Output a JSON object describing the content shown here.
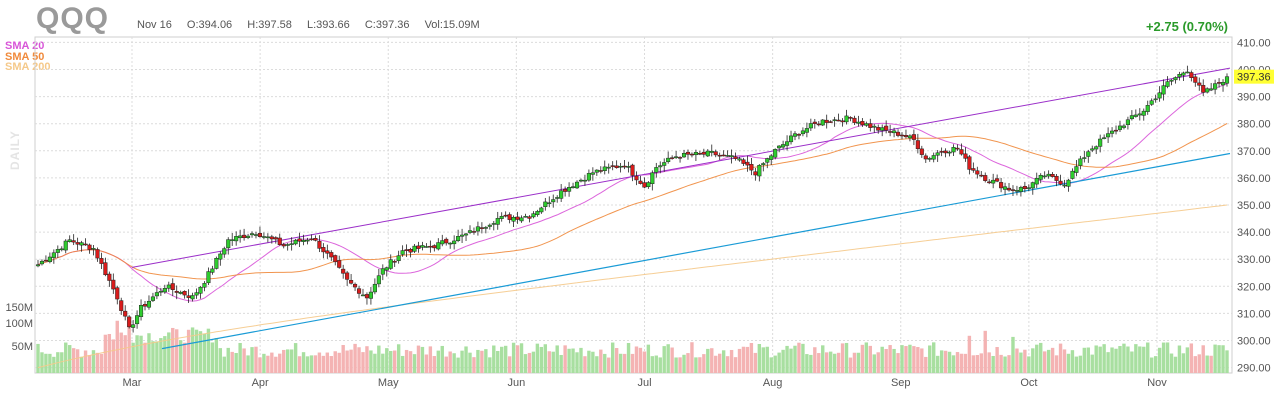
{
  "header": {
    "ticker": "QQQ",
    "date": "Nov 16",
    "open": "O:394.06",
    "high": "H:397.58",
    "low": "L:393.66",
    "close": "C:397.36",
    "volume": "Vol:15.09M",
    "change": "+2.75 (0.70%)",
    "timeframe": "DAILY"
  },
  "legend": [
    {
      "name": "SMA 20",
      "color": "#d855d8"
    },
    {
      "name": "SMA 50",
      "color": "#f08a3c"
    },
    {
      "name": "SMA 200",
      "color": "#f5c98a"
    }
  ],
  "colors": {
    "up": "#2ecc2e",
    "down": "#d91c1c",
    "vol_up": "#a8dfa0",
    "vol_down": "#f4b3b3",
    "channel_upper": "#9b2fc9",
    "channel_lower": "#1a9bd6",
    "last_price_bg": "#ffff33"
  },
  "chart_data": {
    "type": "candlestick",
    "title": "QQQ",
    "timeframe": "Daily",
    "x_labels": [
      "Mar",
      "Apr",
      "May",
      "Jun",
      "Jul",
      "Aug",
      "Sep",
      "Oct",
      "Nov"
    ],
    "y_ticks": [
      290,
      300,
      310,
      320,
      330,
      340,
      350,
      360,
      370,
      380,
      390,
      400,
      410
    ],
    "ylim": [
      288,
      412
    ],
    "volume_ticks": [
      "50M",
      "100M",
      "150M"
    ],
    "last_price": 397.36,
    "last_price_label": "397.36",
    "waypoints": [
      [
        0,
        328
      ],
      [
        8,
        337
      ],
      [
        14,
        334
      ],
      [
        17,
        325
      ],
      [
        20,
        316
      ],
      [
        23,
        304
      ],
      [
        26,
        312
      ],
      [
        32,
        320
      ],
      [
        39,
        316
      ],
      [
        42,
        322
      ],
      [
        48,
        337
      ],
      [
        55,
        340
      ],
      [
        62,
        335
      ],
      [
        69,
        338
      ],
      [
        74,
        330
      ],
      [
        78,
        322
      ],
      [
        83,
        316
      ],
      [
        87,
        326
      ],
      [
        92,
        333
      ],
      [
        100,
        335
      ],
      [
        108,
        339
      ],
      [
        116,
        345
      ],
      [
        124,
        346
      ],
      [
        132,
        355
      ],
      [
        140,
        362
      ],
      [
        148,
        365
      ],
      [
        153,
        357
      ],
      [
        156,
        364
      ],
      [
        161,
        368
      ],
      [
        170,
        369
      ],
      [
        176,
        367
      ],
      [
        181,
        362
      ],
      [
        186,
        370
      ],
      [
        192,
        377
      ],
      [
        198,
        381
      ],
      [
        205,
        382
      ],
      [
        212,
        378
      ],
      [
        218,
        376
      ],
      [
        221,
        374
      ],
      [
        224,
        367
      ],
      [
        228,
        370
      ],
      [
        232,
        371
      ],
      [
        235,
        364
      ],
      [
        239,
        360
      ],
      [
        245,
        356
      ],
      [
        249,
        356
      ],
      [
        254,
        361
      ],
      [
        259,
        358
      ],
      [
        265,
        370
      ],
      [
        272,
        378
      ],
      [
        279,
        385
      ],
      [
        285,
        395
      ],
      [
        290,
        400
      ],
      [
        294,
        391
      ],
      [
        298,
        395
      ],
      [
        300,
        397.36
      ]
    ],
    "channel_upper": {
      "from": [
        "Mar",
        327
      ],
      "to": [
        "Nov 16",
        400.5
      ]
    },
    "channel_lower": {
      "from": [
        "Mar",
        297
      ],
      "to": [
        "Nov 16",
        369
      ]
    },
    "series": [
      {
        "name": "SMA 20"
      },
      {
        "name": "SMA 50"
      },
      {
        "name": "SMA 200"
      }
    ]
  }
}
